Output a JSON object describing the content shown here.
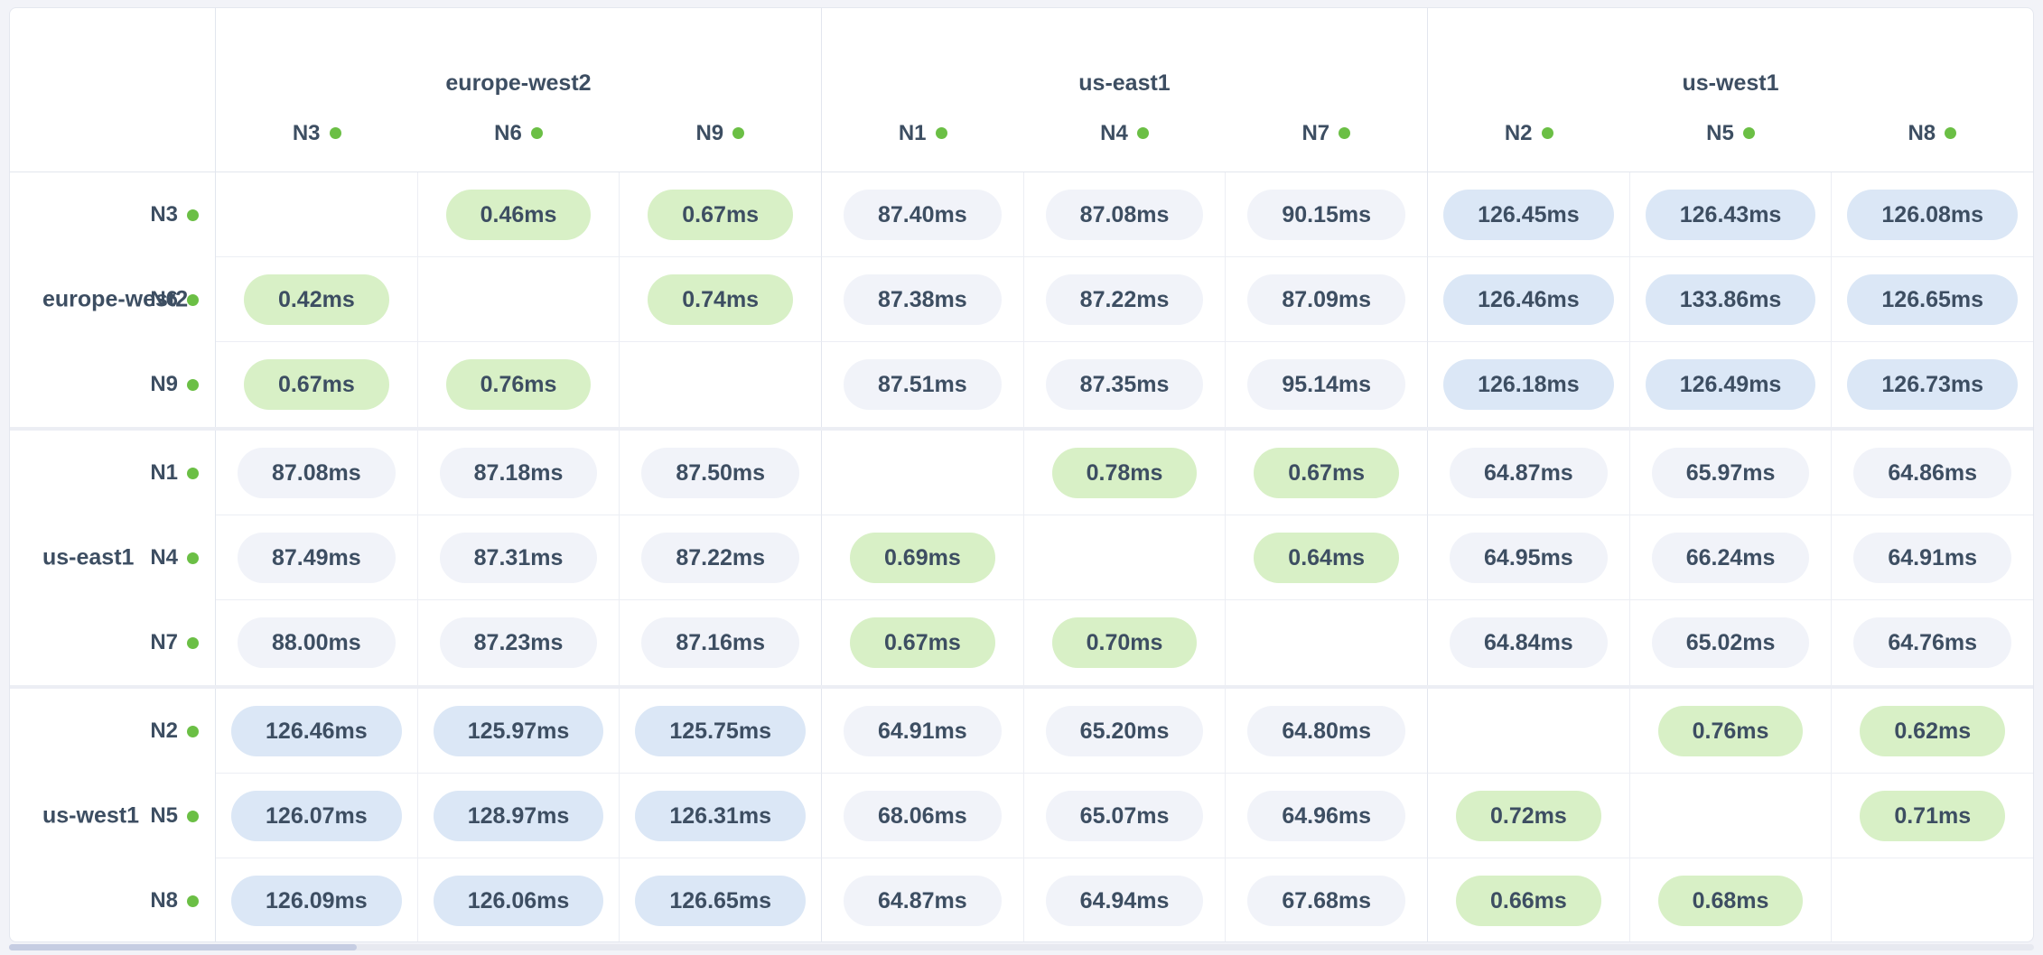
{
  "chart_data": {
    "type": "heatmap",
    "unit": "ms",
    "regions": [
      {
        "name": "europe-west2",
        "nodes": [
          "N3",
          "N6",
          "N9"
        ]
      },
      {
        "name": "us-east1",
        "nodes": [
          "N1",
          "N4",
          "N7"
        ]
      },
      {
        "name": "us-west1",
        "nodes": [
          "N2",
          "N5",
          "N8"
        ]
      }
    ],
    "matrix": [
      [
        null,
        "0.46ms",
        "0.67ms",
        "87.40ms",
        "87.08ms",
        "90.15ms",
        "126.45ms",
        "126.43ms",
        "126.08ms"
      ],
      [
        "0.42ms",
        null,
        "0.74ms",
        "87.38ms",
        "87.22ms",
        "87.09ms",
        "126.46ms",
        "133.86ms",
        "126.65ms"
      ],
      [
        "0.67ms",
        "0.76ms",
        null,
        "87.51ms",
        "87.35ms",
        "95.14ms",
        "126.18ms",
        "126.49ms",
        "126.73ms"
      ],
      [
        "87.08ms",
        "87.18ms",
        "87.50ms",
        null,
        "0.78ms",
        "0.67ms",
        "64.87ms",
        "65.97ms",
        "64.86ms"
      ],
      [
        "87.49ms",
        "87.31ms",
        "87.22ms",
        "0.69ms",
        null,
        "0.64ms",
        "64.95ms",
        "66.24ms",
        "64.91ms"
      ],
      [
        "88.00ms",
        "87.23ms",
        "87.16ms",
        "0.67ms",
        "0.70ms",
        null,
        "64.84ms",
        "65.02ms",
        "64.76ms"
      ],
      [
        "126.46ms",
        "125.97ms",
        "125.75ms",
        "64.91ms",
        "65.20ms",
        "64.80ms",
        null,
        "0.76ms",
        "0.62ms"
      ],
      [
        "126.07ms",
        "128.97ms",
        "126.31ms",
        "68.06ms",
        "65.07ms",
        "64.96ms",
        "0.72ms",
        null,
        "0.71ms"
      ],
      [
        "126.09ms",
        "126.06ms",
        "126.65ms",
        "64.87ms",
        "64.94ms",
        "67.68ms",
        "0.66ms",
        "0.68ms",
        null
      ]
    ],
    "thresholds": {
      "fast_below_ms": 1,
      "slow_above_ms": 120
    }
  },
  "colors": {
    "page_bg": "#f2f3f8",
    "card_border": "#e4e7ef",
    "line_light": "#eceef4",
    "line_strong": "#e2e6ee",
    "band": "#eceef4",
    "text": "#3d4e62",
    "node_dot": "#6bbf45",
    "fast_bg": "#d8f0c6",
    "medium_bg": "#f1f3f9",
    "slow_bg": "#dbe7f6",
    "scroll_track": "#e7e9f0",
    "scroll_thumb": "#c6cde2"
  }
}
